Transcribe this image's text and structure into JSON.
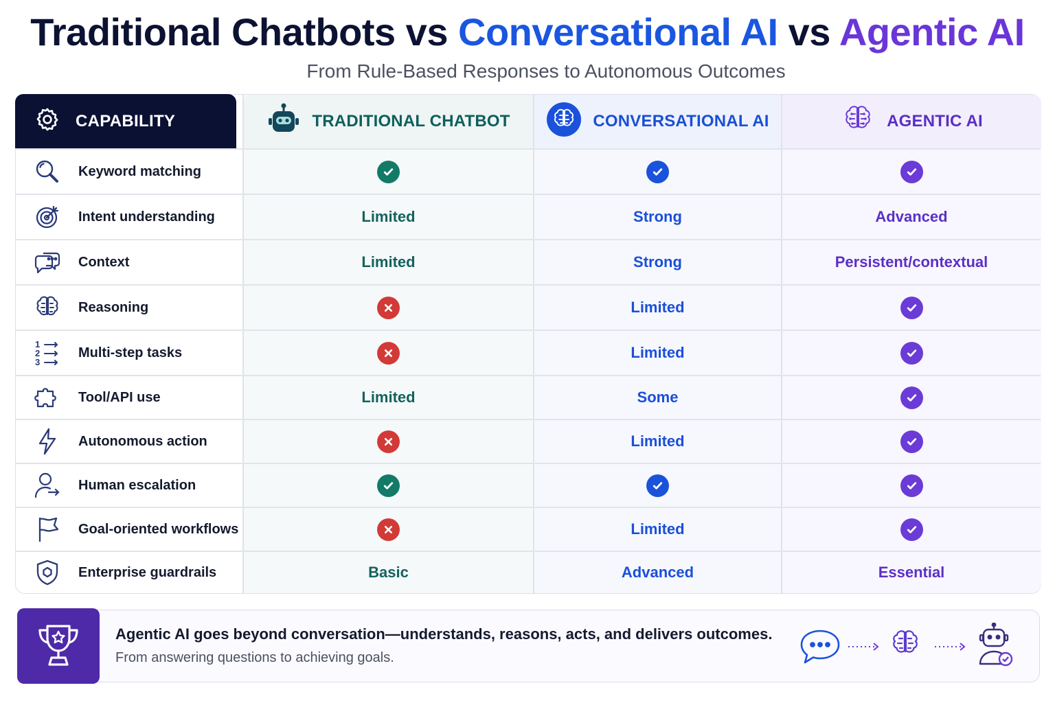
{
  "title": {
    "part1": "Traditional Chatbots vs ",
    "part2": "Conversational AI",
    "part3": " vs ",
    "part4": "Agentic AI"
  },
  "subtitle": "From Rule-Based Responses to Autonomous Outcomes",
  "columns": {
    "capability": "CAPABILITY",
    "traditional": "TRADITIONAL CHATBOT",
    "conversational": "CONVERSATIONAL AI",
    "agentic": "AGENTIC AI"
  },
  "colors": {
    "traditional": "#137a68",
    "conversational": "#1b52db",
    "agentic": "#6a3bd6",
    "cross": "#d23a37",
    "header_dark": "#0b1133"
  },
  "rows": [
    {
      "capability": "Keyword matching",
      "icon": "magnifier-icon",
      "traditional": {
        "type": "check"
      },
      "conversational": {
        "type": "check"
      },
      "agentic": {
        "type": "check"
      }
    },
    {
      "capability": "Intent understanding",
      "icon": "target-icon",
      "traditional": {
        "type": "text",
        "value": "Limited"
      },
      "conversational": {
        "type": "text",
        "value": "Strong"
      },
      "agentic": {
        "type": "text",
        "value": "Advanced"
      }
    },
    {
      "capability": "Context",
      "icon": "chat-bubbles-icon",
      "traditional": {
        "type": "text",
        "value": "Limited"
      },
      "conversational": {
        "type": "text",
        "value": "Strong"
      },
      "agentic": {
        "type": "text",
        "value": "Persistent/contextual"
      }
    },
    {
      "capability": "Reasoning",
      "icon": "brain-icon",
      "traditional": {
        "type": "cross"
      },
      "conversational": {
        "type": "text",
        "value": "Limited"
      },
      "agentic": {
        "type": "check"
      }
    },
    {
      "capability": "Multi-step tasks",
      "icon": "numbered-list-icon",
      "traditional": {
        "type": "cross"
      },
      "conversational": {
        "type": "text",
        "value": "Limited"
      },
      "agentic": {
        "type": "check"
      }
    },
    {
      "capability": "Tool/API use",
      "icon": "puzzle-icon",
      "traditional": {
        "type": "text",
        "value": "Limited"
      },
      "conversational": {
        "type": "text",
        "value": "Some"
      },
      "agentic": {
        "type": "check"
      }
    },
    {
      "capability": "Autonomous action",
      "icon": "lightning-icon",
      "traditional": {
        "type": "cross"
      },
      "conversational": {
        "type": "text",
        "value": "Limited"
      },
      "agentic": {
        "type": "check"
      }
    },
    {
      "capability": "Human escalation",
      "icon": "user-arrow-icon",
      "traditional": {
        "type": "check"
      },
      "conversational": {
        "type": "check"
      },
      "agentic": {
        "type": "check"
      }
    },
    {
      "capability": "Goal-oriented workflows",
      "icon": "flag-icon",
      "traditional": {
        "type": "cross"
      },
      "conversational": {
        "type": "text",
        "value": "Limited"
      },
      "agentic": {
        "type": "check"
      }
    },
    {
      "capability": "Enterprise guardrails",
      "icon": "shield-icon",
      "traditional": {
        "type": "text",
        "value": "Basic"
      },
      "conversational": {
        "type": "text",
        "value": "Advanced"
      },
      "agentic": {
        "type": "text",
        "value": "Essential"
      }
    }
  ],
  "footer": {
    "headline": "Agentic AI goes beyond conversation—understands, reasons, acts, and delivers outcomes.",
    "subline": "From answering questions to achieving goals.",
    "flow_icons": [
      "chat-bubble-icon",
      "brain-icon",
      "robot-check-icon"
    ]
  }
}
